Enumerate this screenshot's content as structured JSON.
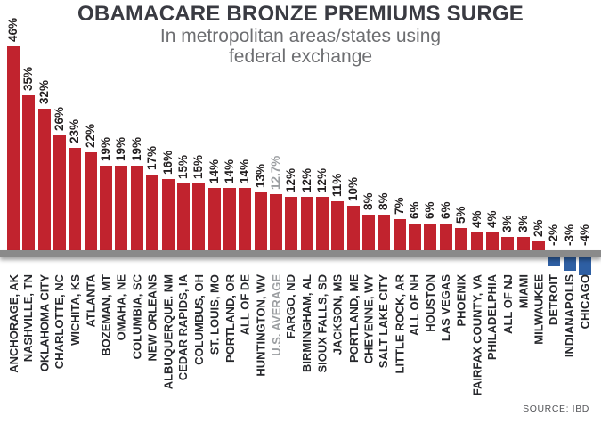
{
  "header": {
    "title": "OBAMACARE BRONZE PREMIUMS SURGE",
    "subtitle_line1": "In metropolitan areas/states using",
    "subtitle_line2": "federal exchange"
  },
  "source_label": "SOURCE: IBD",
  "colors": {
    "bar_positive": "#c1232e",
    "bar_negative": "#2e5fa3",
    "axis_band": "#8a8a8a",
    "title_text": "#3a3b42",
    "subtitle_text": "#6d6e71",
    "label_text": "#26272b",
    "average_text": "#9b9ea1",
    "source_text": "#55565a"
  },
  "chart_data": {
    "type": "bar",
    "title": "OBAMACARE BRONZE PREMIUMS SURGE",
    "subtitle": "In metropolitan areas/states using federal exchange",
    "unit": "%",
    "ylim": [
      -4,
      46
    ],
    "grid": false,
    "value_labels_shown": true,
    "label_rotation": 90,
    "highlight_category": "U.S. AVERAGE",
    "highlight_index": 17,
    "categories": [
      "ANCHORAGE, AK",
      "NASHVILLE, TN",
      "OKLAHOMA CITY",
      "CHARLOTTE, NC",
      "WICHITA, KS",
      "ATLANTA",
      "BOZEMAN, MT",
      "OMAHA, NE",
      "COLUMBIA, SC",
      "NEW ORLEANS",
      "ALBUQUERQUE. NM",
      "CEDAR RAPIDS, IA",
      "COLUMBUS, OH",
      "ST. LOUIS, MO",
      "PORTLAND, OR",
      "ALL OF DE",
      "HUNTINGTON, WV",
      "U.S. AVERAGE",
      "FARGO, ND",
      "BIRMINGHAM, AL",
      "SIOUX FALLS, SD",
      "JACKSON, MS",
      "PORTLAND, ME",
      "CHEYENNE, WY",
      "SALT LAKE CITY",
      "LITTLE ROCK, AR",
      "ALL OF NH",
      "HOUSTON",
      "LAS VEGAS",
      "PHOENIX",
      "FAIRFAX COUNTY, VA",
      "PHILADELPHIA",
      "ALL OF NJ",
      "MIAMI",
      "MILWAUKEE",
      "DETROIT",
      "INDIANAPOLIS",
      "CHICAGO"
    ],
    "values": [
      46,
      35,
      32,
      26,
      23,
      22,
      19,
      19,
      19,
      17,
      16,
      15,
      15,
      14,
      14,
      14,
      13,
      12.7,
      12,
      12,
      12,
      11,
      10,
      8,
      8,
      7,
      6,
      6,
      6,
      5,
      4,
      4,
      3,
      3,
      2,
      -2,
      -3,
      -4
    ]
  }
}
